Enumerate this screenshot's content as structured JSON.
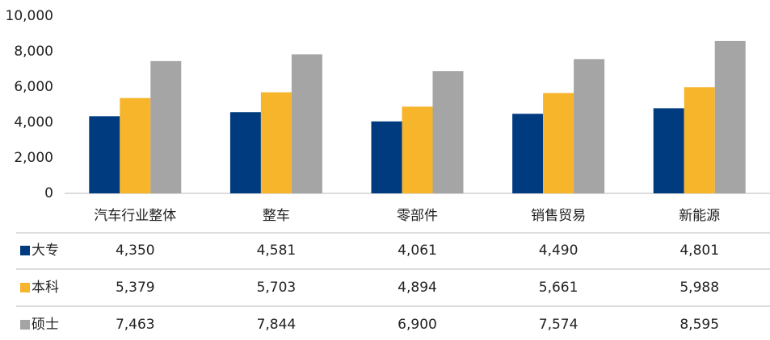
{
  "chart_data": {
    "type": "bar",
    "categories": [
      "汽车行业整体",
      "整车",
      "零部件",
      "销售贸易",
      "新能源"
    ],
    "series": [
      {
        "name": "大专",
        "color": "#003b7f",
        "values": [
          4350,
          4581,
          4061,
          4490,
          4801
        ],
        "value_labels": [
          "4,350",
          "4,581",
          "4,061",
          "4,490",
          "4,801"
        ]
      },
      {
        "name": "本科",
        "color": "#f7b52c",
        "values": [
          5379,
          5703,
          4894,
          5661,
          5988
        ],
        "value_labels": [
          "5,379",
          "5,703",
          "4,894",
          "5,661",
          "5,988"
        ]
      },
      {
        "name": "硕士",
        "color": "#a5a5a5",
        "values": [
          7463,
          7844,
          6900,
          7574,
          8595
        ],
        "value_labels": [
          "7,463",
          "7,844",
          "6,900",
          "7,574",
          "8,595"
        ]
      }
    ],
    "ylim": [
      0,
      10000
    ],
    "yticks": [
      0,
      {
        "value": 2000,
        "label": "2,000"
      },
      {
        "value": 4000,
        "label": "4,000"
      },
      {
        "value": 6000,
        "label": "6,000"
      },
      {
        "value": 8000,
        "label": "8,000"
      },
      {
        "value": 10000,
        "label": "10,000"
      }
    ]
  }
}
